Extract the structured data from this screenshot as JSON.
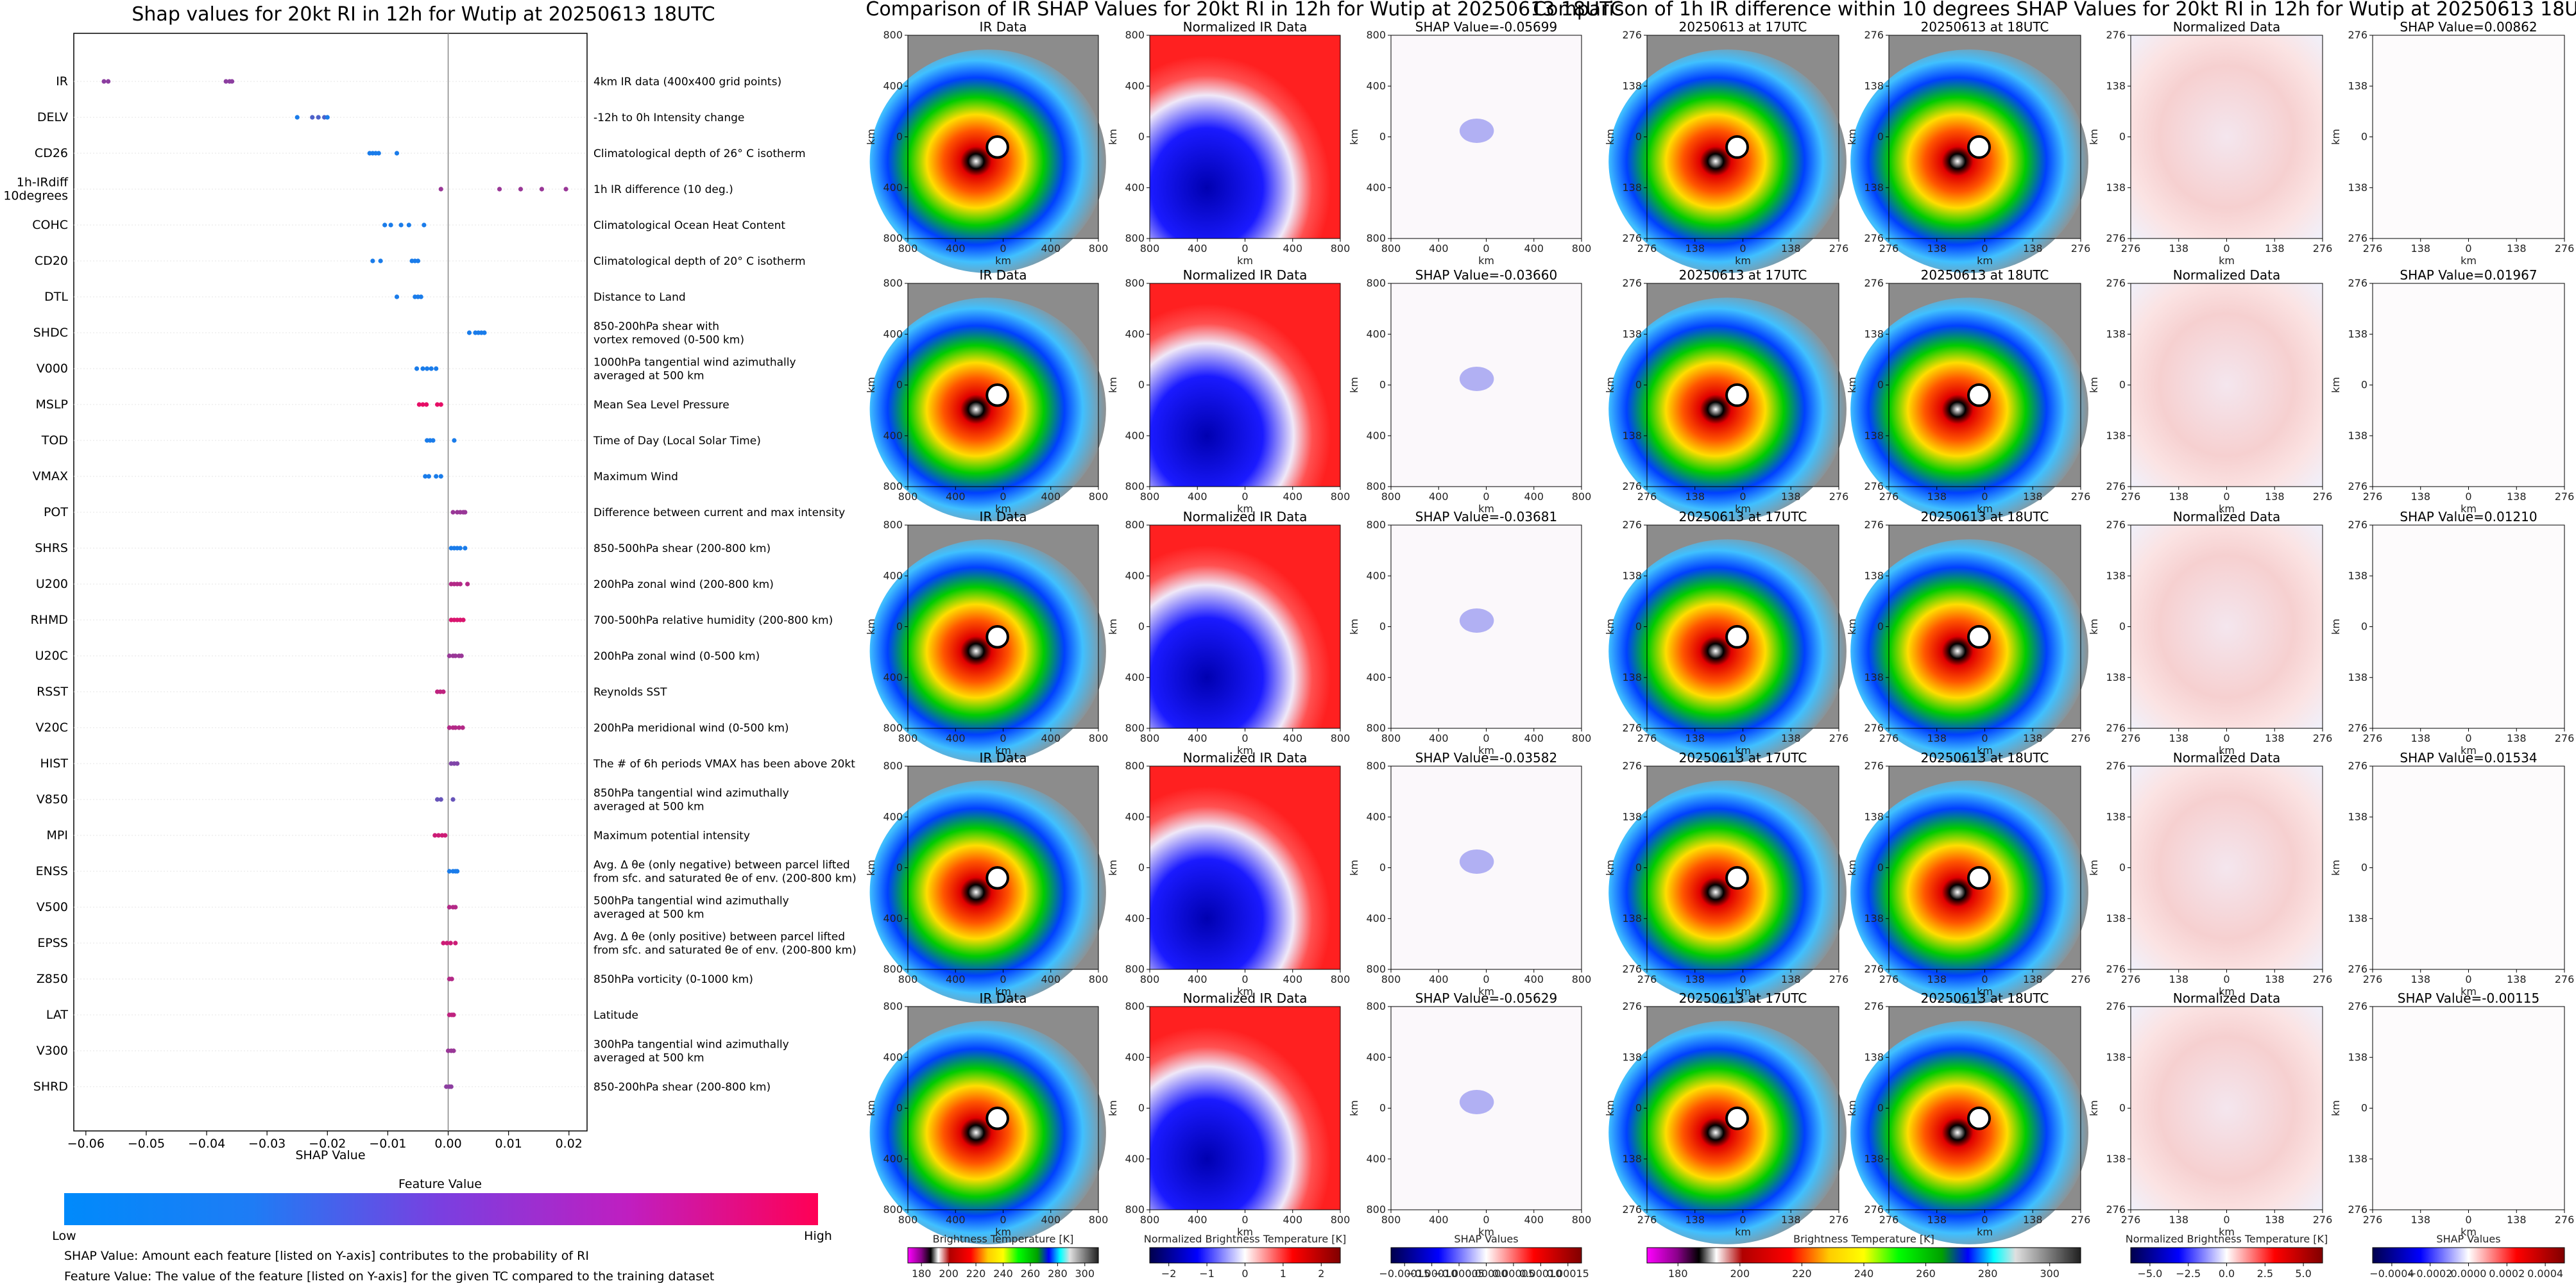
{
  "left": {
    "title": "Shap values for 20kt RI in 12h for Wutip at 20250613 18UTC",
    "xlabel": "SHAP Value",
    "colorbar_title": "Feature Value",
    "colorbar_low": "Low",
    "colorbar_high": "High",
    "note1": "SHAP Value: Amount each feature [listed on Y-axis] contributes to the probability of RI",
    "note2": "Feature Value: The value of the feature [listed on Y-axis] for the given TC compared to the training dataset"
  },
  "middle": {
    "title": "Comparison of IR SHAP Values for 20kt RI in 12h for Wutip at 20250613 18UTC",
    "col_titles": [
      "IR Data",
      "Normalized IR Data"
    ],
    "shap_titles": [
      "SHAP Value=-0.05699",
      "SHAP Value=-0.03660",
      "SHAP Value=-0.03681",
      "SHAP Value=-0.03582",
      "SHAP Value=-0.05629"
    ],
    "axis_label": "km",
    "ticks": [
      "800",
      "400",
      "0",
      "400",
      "800"
    ],
    "colorbars": [
      {
        "title": "Brightness Temperature [K]",
        "ticks": [
          "180",
          "200",
          "220",
          "240",
          "260",
          "280",
          "300"
        ]
      },
      {
        "title": "Normalized Brightness Temperature [K]",
        "ticks": [
          "−2",
          "−1",
          "0",
          "1",
          "2"
        ]
      },
      {
        "title": "SHAP Values",
        "ticks": [
          "−0.00015",
          "−0.00010",
          "−0.00005",
          "0.00000",
          "0.00005",
          "0.00010",
          "0.00015"
        ]
      }
    ]
  },
  "right": {
    "title": "Comparison of 1h IR difference within 10 degrees SHAP Values for 20kt RI in 12h for Wutip at 20250613 18UTC",
    "col_titles": [
      "20250613 at 17UTC",
      "20250613 at 18UTC",
      "Normalized Data"
    ],
    "shap_titles": [
      "SHAP Value=0.00862",
      "SHAP Value=0.01967",
      "SHAP Value=0.01210",
      "SHAP Value=0.01534",
      "SHAP Value=-0.00115"
    ],
    "axis_label": "km",
    "ticks": [
      "276",
      "138",
      "0",
      "138",
      "276"
    ],
    "colorbars": [
      {
        "title": "Brightness Temperature [K]",
        "ticks": [
          "180",
          "200",
          "220",
          "240",
          "260",
          "280",
          "300"
        ]
      },
      {
        "title": "Normalized Brightness Temperature [K]",
        "ticks": [
          "−5.0",
          "−2.5",
          "0.0",
          "2.5",
          "5.0"
        ]
      },
      {
        "title": "SHAP Values",
        "ticks": [
          "−0.0004",
          "−0.0002",
          "0.0000",
          "0.0002",
          "0.0004"
        ]
      }
    ]
  },
  "chart_data": {
    "type": "scatter",
    "title": "Shap values for 20kt RI in 12h for Wutip at 20250613 18UTC",
    "xlabel": "SHAP Value",
    "xlim": [
      -0.062,
      0.023
    ],
    "xticks": [
      -0.06,
      -0.05,
      -0.04,
      -0.03,
      -0.02,
      -0.01,
      0.0,
      0.01,
      0.02
    ],
    "xtick_labels": [
      "−0.06",
      "−0.05",
      "−0.04",
      "−0.03",
      "−0.02",
      "−0.01",
      "0.00",
      "0.01",
      "0.02"
    ],
    "features": [
      {
        "name": "IR",
        "desc": "4km IR data (400x400 grid points)",
        "points": [
          [
            -0.057,
            0.55
          ],
          [
            -0.0563,
            0.55
          ],
          [
            -0.0368,
            0.55
          ],
          [
            -0.0362,
            0.55
          ],
          [
            -0.0358,
            0.55
          ]
        ]
      },
      {
        "name": "DELV",
        "desc": "-12h to 0h Intensity change",
        "points": [
          [
            -0.025,
            0.1
          ],
          [
            -0.0225,
            0.3
          ],
          [
            -0.0215,
            0.3
          ],
          [
            -0.0205,
            0.3
          ],
          [
            -0.02,
            0.1
          ]
        ]
      },
      {
        "name": "CD26",
        "desc": "Climatological depth of 26° C isotherm",
        "points": [
          [
            -0.013,
            0.1
          ],
          [
            -0.0125,
            0.1
          ],
          [
            -0.012,
            0.1
          ],
          [
            -0.0115,
            0.1
          ],
          [
            -0.0085,
            0.1
          ]
        ]
      },
      {
        "name": "1h-IRdiff\n10degrees",
        "desc": "1h IR difference (10 deg.)",
        "points": [
          [
            -0.0012,
            0.6
          ],
          [
            0.0085,
            0.6
          ],
          [
            0.012,
            0.6
          ],
          [
            0.0155,
            0.6
          ],
          [
            0.0195,
            0.6
          ]
        ]
      },
      {
        "name": "COHC",
        "desc": "Climatological Ocean Heat Content",
        "points": [
          [
            -0.0105,
            0.1
          ],
          [
            -0.0095,
            0.1
          ],
          [
            -0.0078,
            0.1
          ],
          [
            -0.0065,
            0.1
          ],
          [
            -0.004,
            0.1
          ]
        ]
      },
      {
        "name": "CD20",
        "desc": "Climatological depth of 20° C isotherm",
        "points": [
          [
            -0.0125,
            0.1
          ],
          [
            -0.0112,
            0.1
          ],
          [
            -0.006,
            0.1
          ],
          [
            -0.0055,
            0.1
          ],
          [
            -0.005,
            0.1
          ]
        ]
      },
      {
        "name": "DTL",
        "desc": "Distance to Land",
        "points": [
          [
            -0.0085,
            0.1
          ],
          [
            -0.0055,
            0.1
          ],
          [
            -0.005,
            0.1
          ],
          [
            -0.0045,
            0.1
          ]
        ]
      },
      {
        "name": "SHDC",
        "desc": "850-200hPa shear with\nvortex removed (0-500 km)",
        "points": [
          [
            0.0035,
            0.1
          ],
          [
            0.0045,
            0.1
          ],
          [
            0.005,
            0.1
          ],
          [
            0.0055,
            0.1
          ],
          [
            0.006,
            0.1
          ]
        ]
      },
      {
        "name": "V000",
        "desc": "1000hPa tangential wind azimuthally\naveraged at 500 km",
        "points": [
          [
            -0.0052,
            0.1
          ],
          [
            -0.0042,
            0.1
          ],
          [
            -0.0035,
            0.1
          ],
          [
            -0.0028,
            0.1
          ],
          [
            -0.002,
            0.1
          ]
        ]
      },
      {
        "name": "MSLP",
        "desc": "Mean Sea Level Pressure",
        "points": [
          [
            -0.0048,
            0.9
          ],
          [
            -0.0042,
            0.9
          ],
          [
            -0.0036,
            0.9
          ],
          [
            -0.0018,
            0.9
          ],
          [
            -0.0012,
            0.9
          ]
        ]
      },
      {
        "name": "TOD",
        "desc": "Time of Day (Local Solar Time)",
        "points": [
          [
            -0.0035,
            0.1
          ],
          [
            -0.003,
            0.1
          ],
          [
            -0.0025,
            0.1
          ],
          [
            0.001,
            0.1
          ]
        ]
      },
      {
        "name": "VMAX",
        "desc": "Maximum Wind",
        "points": [
          [
            -0.0038,
            0.1
          ],
          [
            -0.0032,
            0.1
          ],
          [
            -0.002,
            0.1
          ],
          [
            -0.0012,
            0.1
          ]
        ]
      },
      {
        "name": "POT",
        "desc": "Difference between current and max intensity",
        "points": [
          [
            0.0008,
            0.6
          ],
          [
            0.0015,
            0.6
          ],
          [
            0.002,
            0.6
          ],
          [
            0.0025,
            0.6
          ],
          [
            0.0028,
            0.6
          ]
        ]
      },
      {
        "name": "SHRS",
        "desc": "850-500hPa shear (200-800 km)",
        "points": [
          [
            0.0005,
            0.1
          ],
          [
            0.001,
            0.1
          ],
          [
            0.0015,
            0.1
          ],
          [
            0.002,
            0.1
          ],
          [
            0.0028,
            0.1
          ]
        ]
      },
      {
        "name": "U200",
        "desc": "200hPa zonal wind (200-800 km)",
        "points": [
          [
            0.0005,
            0.7
          ],
          [
            0.001,
            0.7
          ],
          [
            0.0015,
            0.7
          ],
          [
            0.002,
            0.7
          ],
          [
            0.0032,
            0.7
          ]
        ]
      },
      {
        "name": "RHMD",
        "desc": "700-500hPa relative humidity (200-800 km)",
        "points": [
          [
            0.0005,
            0.85
          ],
          [
            0.001,
            0.85
          ],
          [
            0.0015,
            0.85
          ],
          [
            0.002,
            0.85
          ],
          [
            0.0025,
            0.85
          ]
        ]
      },
      {
        "name": "U20C",
        "desc": "200hPa zonal wind (0-500 km)",
        "points": [
          [
            0.0002,
            0.6
          ],
          [
            0.0008,
            0.6
          ],
          [
            0.0012,
            0.6
          ],
          [
            0.0018,
            0.6
          ],
          [
            0.0022,
            0.6
          ]
        ]
      },
      {
        "name": "RSST",
        "desc": "Reynolds SST",
        "points": [
          [
            -0.0018,
            0.75
          ],
          [
            -0.0013,
            0.75
          ],
          [
            -0.0008,
            0.75
          ]
        ]
      },
      {
        "name": "V20C",
        "desc": "200hPa meridional wind (0-500 km)",
        "points": [
          [
            0.0002,
            0.7
          ],
          [
            0.0008,
            0.7
          ],
          [
            0.0012,
            0.7
          ],
          [
            0.0018,
            0.7
          ],
          [
            0.0024,
            0.7
          ]
        ]
      },
      {
        "name": "HIST",
        "desc": "The # of 6h periods VMAX has been above 20kt",
        "points": [
          [
            0.0005,
            0.5
          ],
          [
            0.001,
            0.5
          ],
          [
            0.0015,
            0.5
          ]
        ]
      },
      {
        "name": "V850",
        "desc": "850hPa tangential wind azimuthally\naveraged at 500 km",
        "points": [
          [
            -0.0018,
            0.4
          ],
          [
            -0.0012,
            0.4
          ],
          [
            0.0008,
            0.4
          ]
        ]
      },
      {
        "name": "MPI",
        "desc": "Maximum potential intensity",
        "points": [
          [
            -0.0022,
            0.8
          ],
          [
            -0.0016,
            0.8
          ],
          [
            -0.001,
            0.8
          ],
          [
            -0.0005,
            0.8
          ]
        ]
      },
      {
        "name": "ENSS",
        "desc": "Avg. Δ θe (only negative) between parcel lifted\nfrom sfc. and saturated θe of env. (200-800 km)",
        "points": [
          [
            0.0002,
            0.1
          ],
          [
            0.0008,
            0.1
          ],
          [
            0.0012,
            0.1
          ],
          [
            0.0015,
            0.1
          ]
        ]
      },
      {
        "name": "V500",
        "desc": "500hPa tangential wind azimuthally\naveraged at 500 km",
        "points": [
          [
            0.0002,
            0.7
          ],
          [
            0.0008,
            0.7
          ],
          [
            0.0012,
            0.7
          ]
        ]
      },
      {
        "name": "EPSS",
        "desc": "Avg. Δ θe (only positive) between parcel lifted\nfrom sfc. and saturated θe of env. (200-800 km)",
        "points": [
          [
            -0.0008,
            0.8
          ],
          [
            -0.0002,
            0.8
          ],
          [
            0.0004,
            0.8
          ],
          [
            0.0012,
            0.8
          ]
        ]
      },
      {
        "name": "Z850",
        "desc": "850hPa vorticity (0-1000 km)",
        "points": [
          [
            0.0002,
            0.7
          ],
          [
            0.0006,
            0.7
          ]
        ]
      },
      {
        "name": "LAT",
        "desc": "Latitude",
        "points": [
          [
            0.0002,
            0.75
          ],
          [
            0.0006,
            0.75
          ],
          [
            0.0009,
            0.75
          ]
        ]
      },
      {
        "name": "V300",
        "desc": "300hPa tangential wind azimuthally\naveraged at 500 km",
        "points": [
          [
            0.0,
            0.6
          ],
          [
            0.0005,
            0.6
          ],
          [
            0.0009,
            0.6
          ]
        ]
      },
      {
        "name": "SHRD",
        "desc": "850-200hPa shear (200-800 km)",
        "points": [
          [
            -0.0003,
            0.55
          ],
          [
            0.0002,
            0.55
          ],
          [
            0.0005,
            0.55
          ]
        ]
      }
    ]
  }
}
